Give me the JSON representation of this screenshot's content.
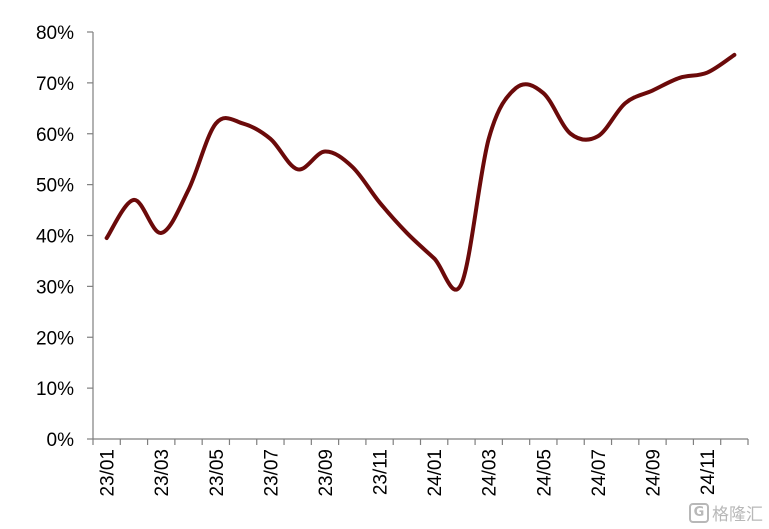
{
  "chart_data": {
    "type": "line",
    "title": "",
    "xlabel": "",
    "ylabel": "",
    "x": [
      "23/01",
      "23/02",
      "23/03",
      "23/04",
      "23/05",
      "23/06",
      "23/07",
      "23/08",
      "23/09",
      "23/10",
      "23/11",
      "23/12",
      "24/01",
      "24/02",
      "24/03",
      "24/04",
      "24/05",
      "24/06",
      "24/07",
      "24/08",
      "24/09",
      "24/10",
      "24/11",
      "24/12"
    ],
    "x_tick_labels": [
      "23/01",
      "23/03",
      "23/05",
      "23/07",
      "23/09",
      "23/11",
      "24/01",
      "24/03",
      "24/05",
      "24/07",
      "24/09",
      "24/11"
    ],
    "series": [
      {
        "name": "",
        "color": "#6b0a0a",
        "values": [
          39.5,
          47,
          40.5,
          49,
          62,
          62,
          59,
          53,
          56.5,
          53.5,
          46.5,
          40.5,
          35.5,
          30.5,
          59,
          69,
          68,
          60,
          59.5,
          66,
          68.5,
          71,
          72,
          75.5
        ]
      }
    ],
    "ylim": [
      0,
      80
    ],
    "y_ticks": [
      0,
      10,
      20,
      30,
      40,
      50,
      60,
      70,
      80
    ],
    "y_tick_format": "%",
    "grid": false,
    "legend": "none"
  },
  "watermark": {
    "icon": "G",
    "text": "格隆汇"
  }
}
